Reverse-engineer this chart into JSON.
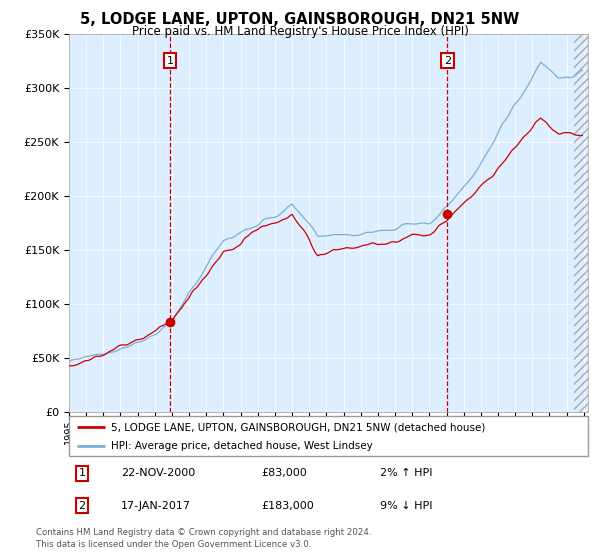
{
  "title": "5, LODGE LANE, UPTON, GAINSBOROUGH, DN21 5NW",
  "subtitle": "Price paid vs. HM Land Registry's House Price Index (HPI)",
  "legend_line1": "5, LODGE LANE, UPTON, GAINSBOROUGH, DN21 5NW (detached house)",
  "legend_line2": "HPI: Average price, detached house, West Lindsey",
  "ylim": [
    0,
    350000
  ],
  "yticks": [
    0,
    50000,
    100000,
    150000,
    200000,
    250000,
    300000,
    350000
  ],
  "ytick_labels": [
    "£0",
    "£50K",
    "£100K",
    "£150K",
    "£200K",
    "£250K",
    "£300K",
    "£350K"
  ],
  "background_color": "#ffffff",
  "plot_bg_color": "#ddeeff",
  "hpi_line_color": "#7bafd4",
  "price_line_color": "#cc0000",
  "vline_color": "#cc0000",
  "annotation_box_color": "#cc0000",
  "transaction1_date": "22-NOV-2000",
  "transaction1_price": 83000,
  "transaction1_label": "1",
  "transaction1_hpi_pct": "2% ↑ HPI",
  "transaction2_date": "17-JAN-2017",
  "transaction2_price": 183000,
  "transaction2_label": "2",
  "transaction2_hpi_pct": "9% ↓ HPI",
  "footer_line1": "Contains HM Land Registry data © Crown copyright and database right 2024.",
  "footer_line2": "This data is licensed under the Open Government Licence v3.0."
}
